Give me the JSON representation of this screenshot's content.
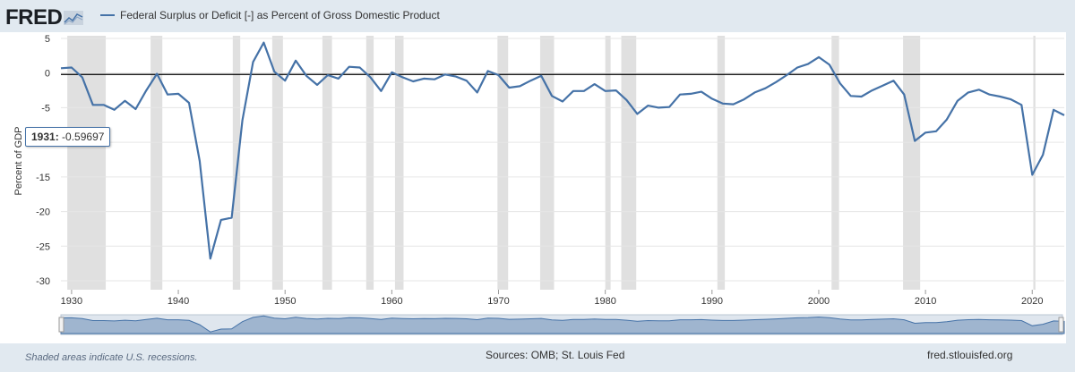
{
  "header": {
    "logo_text": "FRED",
    "series_title": "Federal Surplus or Deficit [-] as Percent of Gross Domestic Product"
  },
  "tooltip": {
    "label": "1931:",
    "value": "-0.59697"
  },
  "footer": {
    "recession_note": "Shaded areas indicate U.S. recessions.",
    "sources": "Sources: OMB; St. Louis Fed",
    "site": "fred.stlouisfed.org"
  },
  "colors": {
    "line": "#4572a7",
    "recession": "#e0e0e0",
    "zero_line": "#000000",
    "background": "#e1e9f0",
    "plot_bg": "#ffffff"
  },
  "chart_data": {
    "type": "line",
    "ylabel": "Percent of GDP",
    "xlabel": "",
    "xlim": [
      1929,
      2023
    ],
    "ylim": [
      -30,
      5
    ],
    "xticks": [
      1930,
      1940,
      1950,
      1960,
      1970,
      1980,
      1990,
      2000,
      2010,
      2020
    ],
    "yticks": [
      5,
      0,
      -5,
      -10,
      -15,
      -20,
      -25,
      -30
    ],
    "zero_line": -0.2,
    "recessions": [
      [
        1929.6,
        1933.2
      ],
      [
        1937.4,
        1938.5
      ],
      [
        1945.1,
        1945.8
      ],
      [
        1948.8,
        1949.8
      ],
      [
        1953.5,
        1954.4
      ],
      [
        1957.6,
        1958.3
      ],
      [
        1960.3,
        1961.1
      ],
      [
        1969.9,
        1970.9
      ],
      [
        1973.9,
        1975.2
      ],
      [
        1980.0,
        1980.5
      ],
      [
        1981.5,
        1982.9
      ],
      [
        1990.5,
        1991.2
      ],
      [
        2001.2,
        2001.9
      ],
      [
        2007.9,
        2009.5
      ],
      [
        2020.1,
        2020.3
      ]
    ],
    "series": [
      {
        "x": [
          1929,
          1930,
          1931,
          1932,
          1933,
          1934,
          1935,
          1936,
          1937,
          1938,
          1939,
          1940,
          1941,
          1942,
          1943,
          1944,
          1945,
          1946,
          1947,
          1948,
          1949,
          1950,
          1951,
          1952,
          1953,
          1954,
          1955,
          1956,
          1957,
          1958,
          1959,
          1960,
          1961,
          1962,
          1963,
          1964,
          1965,
          1966,
          1967,
          1968,
          1969,
          1970,
          1971,
          1972,
          1973,
          1974,
          1975,
          1976,
          1977,
          1978,
          1979,
          1980,
          1981,
          1982,
          1983,
          1984,
          1985,
          1986,
          1987,
          1988,
          1989,
          1990,
          1991,
          1992,
          1993,
          1994,
          1995,
          1996,
          1997,
          1998,
          1999,
          2000,
          2001,
          2002,
          2003,
          2004,
          2005,
          2006,
          2007,
          2008,
          2009,
          2010,
          2011,
          2012,
          2013,
          2014,
          2015,
          2016,
          2017,
          2018,
          2019,
          2020,
          2021,
          2022,
          2023
        ],
        "y": [
          0.7,
          0.8,
          -0.6,
          -4.6,
          -4.6,
          -5.3,
          -4.0,
          -5.2,
          -2.5,
          -0.1,
          -3.1,
          -3.0,
          -4.3,
          -12.7,
          -26.8,
          -21.2,
          -20.9,
          -6.8,
          1.6,
          4.4,
          0.2,
          -1.1,
          1.8,
          -0.4,
          -1.7,
          -0.3,
          -0.8,
          0.9,
          0.8,
          -0.6,
          -2.6,
          0.1,
          -0.6,
          -1.2,
          -0.8,
          -0.9,
          -0.2,
          -0.5,
          -1.1,
          -2.8,
          0.3,
          -0.3,
          -2.1,
          -1.9,
          -1.1,
          -0.4,
          -3.3,
          -4.1,
          -2.6,
          -2.6,
          -1.6,
          -2.6,
          -2.5,
          -3.9,
          -5.9,
          -4.7,
          -5.0,
          -4.9,
          -3.1,
          -3.0,
          -2.7,
          -3.7,
          -4.4,
          -4.5,
          -3.8,
          -2.8,
          -2.2,
          -1.3,
          -0.3,
          0.8,
          1.3,
          2.3,
          1.2,
          -1.5,
          -3.3,
          -3.4,
          -2.5,
          -1.8,
          -1.1,
          -3.1,
          -9.8,
          -8.6,
          -8.4,
          -6.7,
          -4.0,
          -2.8,
          -2.4,
          -3.1,
          -3.4,
          -3.8,
          -4.6,
          -14.7,
          -11.8,
          -5.3,
          -6.1
        ]
      }
    ]
  }
}
